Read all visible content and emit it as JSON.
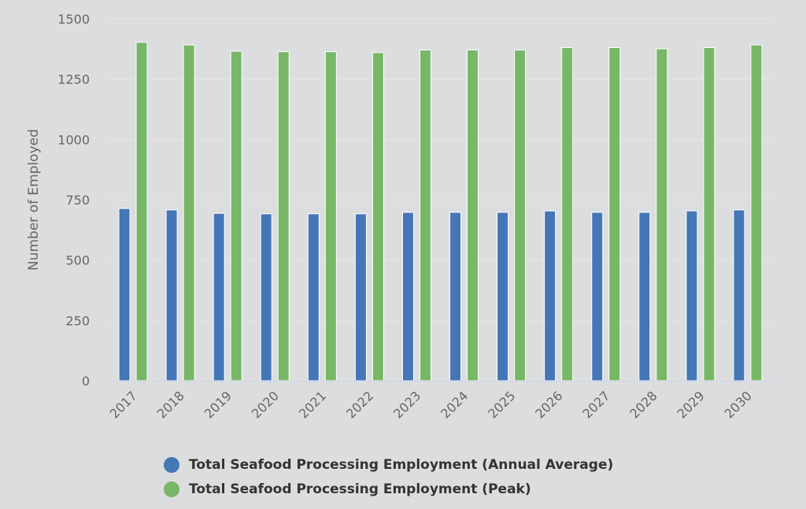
{
  "chart_data": {
    "type": "bar",
    "title": "",
    "xlabel": "",
    "ylabel": "Number of Employed",
    "ylim": [
      0,
      1500
    ],
    "yticks": [
      "0",
      "250",
      "500",
      "750",
      "1000",
      "1250",
      "1500"
    ],
    "grid": true,
    "legend_position": "bottom-center",
    "categories": [
      "2017",
      "2018",
      "2019",
      "2020",
      "2021",
      "2022",
      "2023",
      "2024",
      "2025",
      "2026",
      "2027",
      "2028",
      "2029",
      "2030"
    ],
    "series": [
      {
        "name": "Total Seafood Processing Employment (Annual Average)",
        "color": "#4576b5",
        "values": [
          714,
          708,
          694,
          692,
          692,
          692,
          698,
          698,
          698,
          704,
          698,
          698,
          704,
          708
        ]
      },
      {
        "name": "Total Seafood Processing Employment (Peak)",
        "color": "#77b767",
        "values": [
          1403,
          1392,
          1366,
          1364,
          1364,
          1360,
          1371,
          1371,
          1371,
          1381,
          1381,
          1376,
          1381,
          1392
        ]
      }
    ]
  }
}
